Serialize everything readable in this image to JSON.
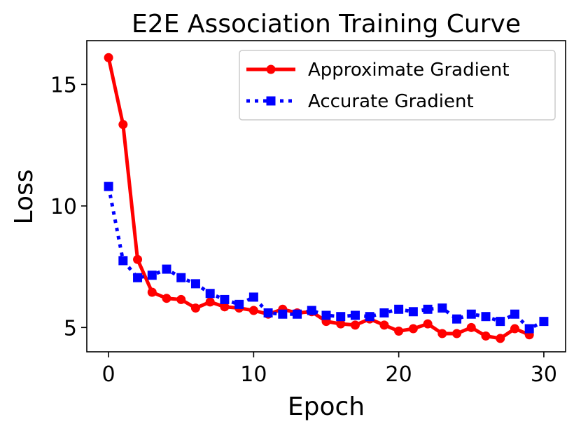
{
  "chart_data": {
    "type": "line",
    "title": "E2E Association Training Curve",
    "xlabel": "Epoch",
    "ylabel": "Loss",
    "xlim": [
      -1.5,
      31.5
    ],
    "ylim": [
      4.0,
      16.8
    ],
    "xticks": [
      0,
      10,
      20,
      30
    ],
    "yticks": [
      5,
      10,
      15
    ],
    "legend_position": "top-right",
    "series": [
      {
        "name": "Approximate Gradient",
        "color": "#ff0000",
        "linestyle": "solid",
        "marker": "circle",
        "x": [
          0,
          1,
          2,
          3,
          4,
          5,
          6,
          7,
          8,
          9,
          10,
          11,
          12,
          13,
          14,
          15,
          16,
          17,
          18,
          19,
          20,
          21,
          22,
          23,
          24,
          25,
          26,
          27,
          28,
          29
        ],
        "values": [
          16.1,
          13.35,
          7.8,
          6.45,
          6.2,
          6.15,
          5.8,
          6.05,
          5.85,
          5.8,
          5.7,
          5.55,
          5.75,
          5.6,
          5.65,
          5.25,
          5.15,
          5.1,
          5.35,
          5.1,
          4.85,
          4.95,
          5.15,
          4.75,
          4.75,
          5.0,
          4.65,
          4.55,
          4.95,
          4.7
        ]
      },
      {
        "name": "Accurate Gradient",
        "color": "#0000ff",
        "linestyle": "dotted",
        "marker": "square",
        "x": [
          0,
          1,
          2,
          3,
          4,
          5,
          6,
          7,
          8,
          9,
          10,
          11,
          12,
          13,
          14,
          15,
          16,
          17,
          18,
          19,
          20,
          21,
          22,
          23,
          24,
          25,
          26,
          27,
          28,
          29,
          30
        ],
        "values": [
          10.8,
          7.75,
          7.05,
          7.15,
          7.4,
          7.05,
          6.8,
          6.4,
          6.15,
          5.95,
          6.25,
          5.6,
          5.55,
          5.55,
          5.7,
          5.5,
          5.45,
          5.5,
          5.45,
          5.6,
          5.75,
          5.65,
          5.75,
          5.8,
          5.35,
          5.55,
          5.45,
          5.25,
          5.55,
          4.95,
          5.25
        ]
      }
    ]
  }
}
